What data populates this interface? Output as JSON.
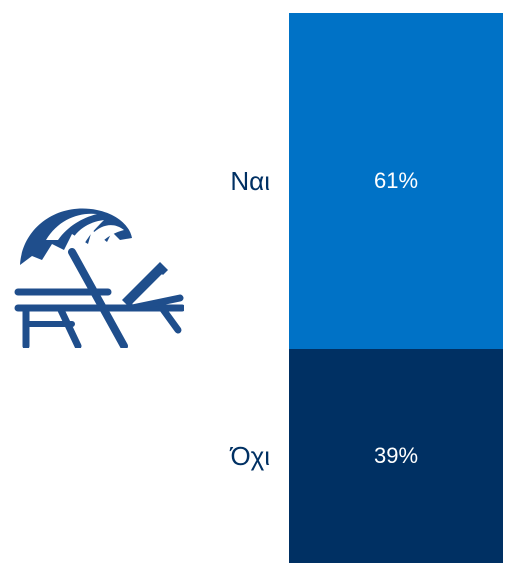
{
  "chart_data": {
    "type": "bar",
    "stacked": true,
    "orientation": "vertical",
    "categories": [
      "Ναι",
      "Όχι"
    ],
    "values": [
      61,
      39
    ],
    "value_labels": [
      "61%",
      "39%"
    ],
    "colors": [
      "#0072c6",
      "#003063"
    ],
    "title": "",
    "xlabel": "",
    "ylabel": "",
    "ylim": [
      0,
      100
    ]
  },
  "icon": {
    "name": "beach-umbrella-lounger-icon",
    "color": "#1f4e8c"
  }
}
